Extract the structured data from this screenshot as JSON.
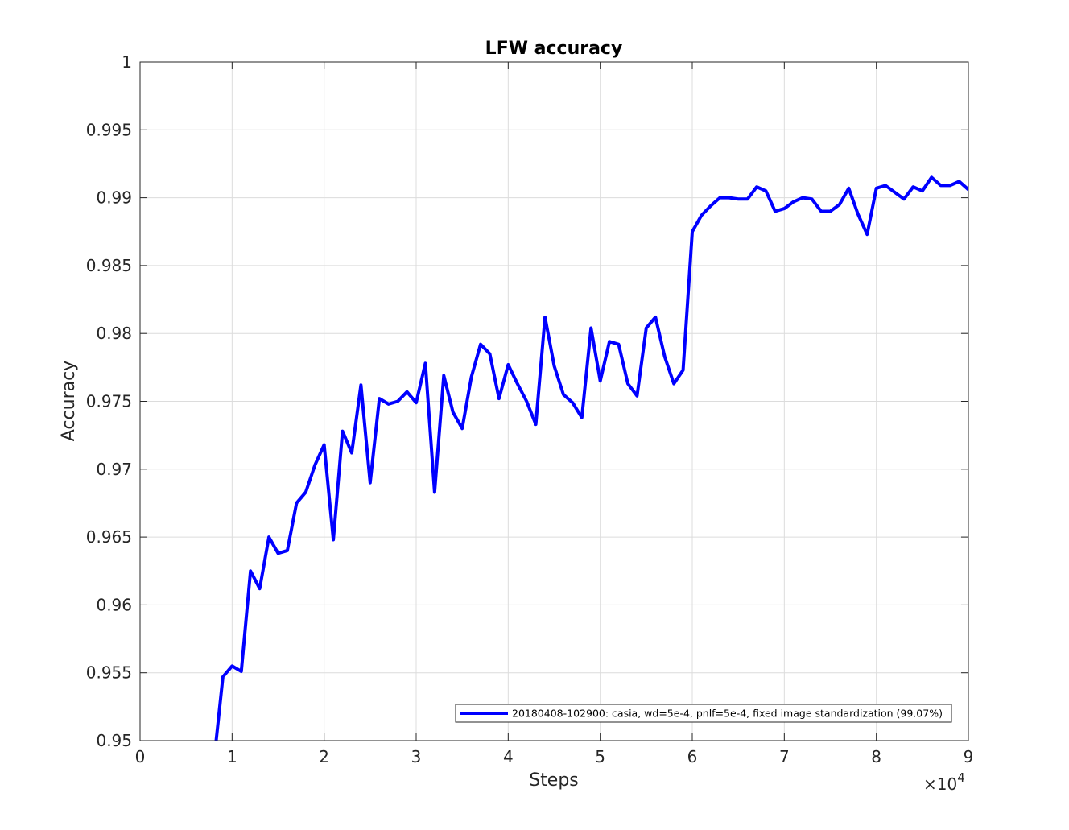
{
  "chart_data": {
    "type": "line",
    "title": "LFW accuracy",
    "xlabel": "Steps",
    "ylabel": "Accuracy",
    "xlim": [
      0,
      9
    ],
    "ylim": [
      0.95,
      1
    ],
    "x_multiplier_label": "×10",
    "x_multiplier_exponent": "4",
    "x_ticks": [
      0,
      1,
      2,
      3,
      4,
      5,
      6,
      7,
      8,
      9
    ],
    "y_ticks": [
      0.95,
      0.955,
      0.96,
      0.965,
      0.97,
      0.975,
      0.98,
      0.985,
      0.99,
      0.995,
      1
    ],
    "x_tick_labels": [
      "0",
      "1",
      "2",
      "3",
      "4",
      "5",
      "6",
      "7",
      "8",
      "9"
    ],
    "y_tick_labels": [
      "0.95",
      "0.955",
      "0.96",
      "0.965",
      "0.97",
      "0.975",
      "0.98",
      "0.985",
      "0.99",
      "0.995",
      "1"
    ],
    "grid": true,
    "legend_position": "bottom-right",
    "series": [
      {
        "name": "20180408-102900: casia, wd=5e-4, pnlf=5e-4, fixed image standardization (99.07%)",
        "color": "#0000ff",
        "x": [
          0.8,
          0.9,
          1.0,
          1.1,
          1.2,
          1.3,
          1.4,
          1.5,
          1.6,
          1.7,
          1.8,
          1.9,
          2.0,
          2.1,
          2.2,
          2.3,
          2.4,
          2.5,
          2.6,
          2.7,
          2.8,
          2.9,
          3.0,
          3.1,
          3.2,
          3.3,
          3.4,
          3.5,
          3.6,
          3.7,
          3.8,
          3.9,
          4.0,
          4.1,
          4.2,
          4.3,
          4.4,
          4.5,
          4.6,
          4.7,
          4.8,
          4.9,
          5.0,
          5.1,
          5.2,
          5.3,
          5.4,
          5.5,
          5.6,
          5.7,
          5.8,
          5.9,
          6.0,
          6.1,
          6.2,
          6.3,
          6.4,
          6.5,
          6.6,
          6.7,
          6.8,
          6.9,
          7.0,
          7.1,
          7.2,
          7.3,
          7.4,
          7.5,
          7.6,
          7.7,
          7.8,
          7.9,
          8.0,
          8.1,
          8.2,
          8.3,
          8.4,
          8.5,
          8.6,
          8.7,
          8.8,
          8.9,
          9.0
        ],
        "y": [
          0.9483,
          0.9547,
          0.9555,
          0.9551,
          0.9625,
          0.9612,
          0.965,
          0.9638,
          0.964,
          0.9675,
          0.9683,
          0.9703,
          0.9718,
          0.9648,
          0.9728,
          0.9712,
          0.9762,
          0.969,
          0.9752,
          0.9748,
          0.975,
          0.9757,
          0.9749,
          0.9778,
          0.9683,
          0.9769,
          0.9742,
          0.973,
          0.9768,
          0.9792,
          0.9785,
          0.9752,
          0.9777,
          0.9763,
          0.975,
          0.9733,
          0.9812,
          0.9776,
          0.9755,
          0.9749,
          0.9738,
          0.9804,
          0.9765,
          0.9794,
          0.9792,
          0.9763,
          0.9754,
          0.9804,
          0.9812,
          0.9783,
          0.9763,
          0.9773,
          0.9875,
          0.9887,
          0.9894,
          0.99,
          0.99,
          0.9899,
          0.9899,
          0.9908,
          0.9905,
          0.989,
          0.9892,
          0.9897,
          0.99,
          0.9899,
          0.989,
          0.989,
          0.9895,
          0.9907,
          0.9888,
          0.9873,
          0.9907,
          0.9909,
          0.9904,
          0.9899,
          0.9908,
          0.9905,
          0.9915,
          0.9909,
          0.9909,
          0.9912,
          0.9906
        ]
      }
    ]
  }
}
